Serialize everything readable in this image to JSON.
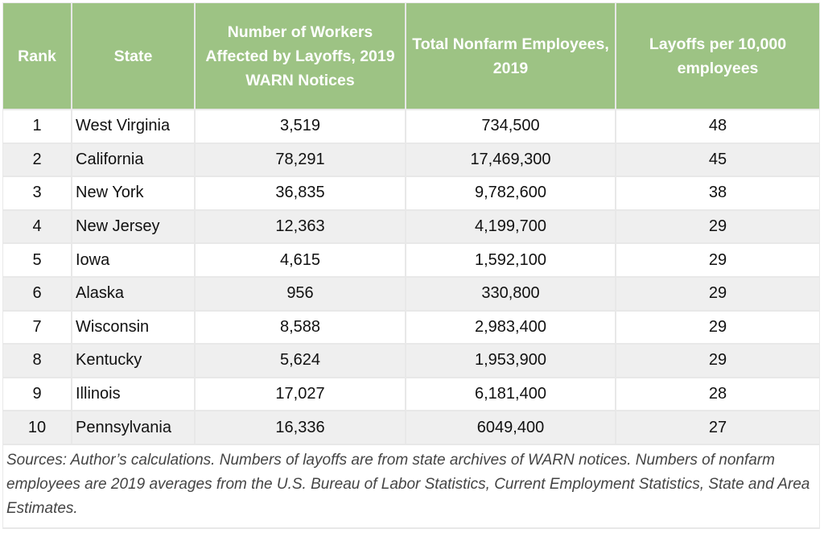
{
  "chart_data": {
    "type": "table",
    "columns": [
      "Rank",
      "State",
      "Number of Workers Affected by Layoffs, 2019 WARN Notices",
      "Total Nonfarm Employees, 2019",
      "Layoffs per 10,000 employees"
    ],
    "rows": [
      [
        "1",
        "West Virginia",
        "3,519",
        "734,500",
        "48"
      ],
      [
        "2",
        "California",
        "78,291",
        "17,469,300",
        "45"
      ],
      [
        "3",
        "New York",
        "36,835",
        "9,782,600",
        "38"
      ],
      [
        "4",
        "New Jersey",
        "12,363",
        "4,199,700",
        "29"
      ],
      [
        "5",
        "Iowa",
        "4,615",
        "1,592,100",
        "29"
      ],
      [
        "6",
        "Alaska",
        "956",
        "330,800",
        "29"
      ],
      [
        "7",
        "Wisconsin",
        "8,588",
        "2,983,400",
        "29"
      ],
      [
        "8",
        "Kentucky",
        "5,624",
        "1,953,900",
        "29"
      ],
      [
        "9",
        "Illinois",
        "17,027",
        "6,181,400",
        "28"
      ],
      [
        "10",
        "Pennsylvania",
        "16,336",
        "6049,400",
        "27"
      ]
    ],
    "footnote": "Sources: Author’s calculations. Numbers of layoffs are from state archives of WARN notices. Numbers of nonfarm employees are 2019 averages from the U.S. Bureau of Labor Statistics, Current Employment Statistics, State and Area Estimates.",
    "colors": {
      "header": "#9dc384",
      "header_text": "#ffffff",
      "stripe": "#efefef"
    }
  }
}
